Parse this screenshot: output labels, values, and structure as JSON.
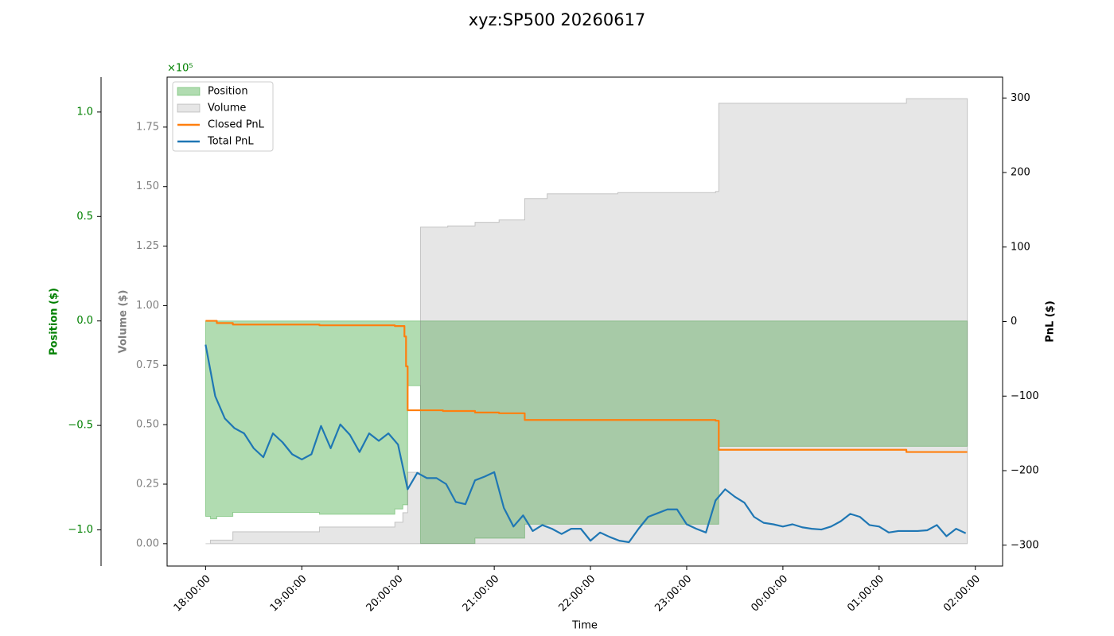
{
  "chart_data": {
    "type": "line",
    "title": "xyz:SP500 20260617",
    "xlabel": "Time",
    "xlim": [
      "17:36:00",
      "02:17:00"
    ],
    "xticks": [
      "18:00:00",
      "19:00:00",
      "20:00:00",
      "21:00:00",
      "22:00:00",
      "23:00:00",
      "00:00:00",
      "01:00:00",
      "02:00:00"
    ],
    "legend": "upper left",
    "axes": {
      "position": {
        "label": "Position ($)",
        "color": "green",
        "offset_label": "×10⁵",
        "lim": [
          -1.173,
          1.167
        ],
        "ticks": [
          {
            "value": -1,
            "label": "−1.0"
          },
          {
            "value": -0.5,
            "label": "−0.5"
          },
          {
            "value": 0,
            "label": "0.0"
          },
          0.5,
          {
            "value": 1,
            "label": "1.0"
          }
        ]
      },
      "volume": {
        "label": "Volume ($)",
        "color": "gray",
        "lim": [
          -0.094,
          1.96
        ],
        "ticks": [
          {
            "value": 0,
            "label": "0.00"
          },
          0.25,
          {
            "value": 0.5,
            "label": "0.50"
          },
          0.75,
          {
            "value": 1,
            "label": "1.00"
          },
          1.25,
          {
            "value": 1.5,
            "label": "1.50"
          },
          1.75
        ]
      },
      "pnl": {
        "label": "PnL ($)",
        "color": "#000000",
        "lim": [
          -328,
          328
        ],
        "ticks": [
          {
            "value": -300,
            "label": "−300"
          },
          {
            "value": -200,
            "label": "−200"
          },
          {
            "value": -100,
            "label": "−100"
          },
          0,
          100,
          200,
          300
        ]
      }
    },
    "series": [
      {
        "name": "Position",
        "kind": "area",
        "step": "post",
        "axis": "position",
        "color": "#2ca02c",
        "x": [
          "18:00:00",
          "18:03:00",
          "18:07:00",
          "18:17:00",
          "19:11:00",
          "19:58:00",
          "20:03:00",
          "20:06:00",
          "20:14:00",
          "20:48:00",
          "21:19:00",
          "23:20:00",
          "01:55:00"
        ],
        "values": [
          -0.935,
          -0.947,
          -0.935,
          -0.916,
          -0.925,
          -0.9,
          -0.88,
          -0.31,
          -1.065,
          -1.04,
          -0.973,
          -0.6,
          -0.6
        ]
      },
      {
        "name": "Volume",
        "kind": "area",
        "step": "post",
        "axis": "volume",
        "color": "#808080",
        "x": [
          "18:00:00",
          "18:03:00",
          "18:17:00",
          "19:11:00",
          "19:58:00",
          "20:03:00",
          "20:06:00",
          "20:14:00",
          "20:31:00",
          "20:48:00",
          "21:03:00",
          "21:19:00",
          "21:33:00",
          "22:17:00",
          "23:18:00",
          "23:20:00",
          "01:17:00",
          "01:55:00"
        ],
        "values": [
          0,
          0.015,
          0.05,
          0.07,
          0.09,
          0.13,
          0.3,
          1.33,
          1.335,
          1.35,
          1.36,
          1.45,
          1.47,
          1.475,
          1.48,
          1.85,
          1.87,
          1.87
        ]
      },
      {
        "name": "Closed PnL",
        "kind": "line",
        "step": "post",
        "axis": "pnl",
        "color": "#ff7f0e",
        "x": [
          "18:00:00",
          "18:07:00",
          "18:17:00",
          "19:11:00",
          "19:58:00",
          "20:04:00",
          "20:05:00",
          "20:06:00",
          "20:28:00",
          "20:48:00",
          "21:03:00",
          "21:19:00",
          "22:17:00",
          "23:18:00",
          "23:20:00",
          "01:17:00",
          "01:55:00"
        ],
        "values": [
          1,
          -2,
          -4,
          -5,
          -6,
          -20,
          -60,
          -119,
          -120,
          -122,
          -123,
          -132,
          -132,
          -133,
          -172,
          -175,
          -175
        ]
      },
      {
        "name": "Total PnL",
        "kind": "line",
        "axis": "pnl",
        "color": "#1f77b4",
        "x": [
          "18:00:00",
          "18:06:00",
          "18:12:00",
          "18:18:00",
          "18:24:00",
          "18:30:00",
          "18:36:00",
          "18:42:00",
          "18:48:00",
          "18:54:00",
          "19:00:00",
          "19:06:00",
          "19:12:00",
          "19:18:00",
          "19:24:00",
          "19:30:00",
          "19:36:00",
          "19:42:00",
          "19:48:00",
          "19:54:00",
          "20:00:00",
          "20:06:00",
          "20:12:00",
          "20:18:00",
          "20:24:00",
          "20:30:00",
          "20:36:00",
          "20:42:00",
          "20:48:00",
          "20:54:00",
          "21:00:00",
          "21:06:00",
          "21:12:00",
          "21:18:00",
          "21:24:00",
          "21:30:00",
          "21:36:00",
          "21:42:00",
          "21:48:00",
          "21:54:00",
          "22:00:00",
          "22:06:00",
          "22:12:00",
          "22:18:00",
          "22:24:00",
          "22:30:00",
          "22:36:00",
          "22:42:00",
          "22:48:00",
          "22:54:00",
          "23:00:00",
          "23:06:00",
          "23:12:00",
          "23:18:00",
          "23:24:00",
          "23:30:00",
          "23:36:00",
          "23:42:00",
          "23:48:00",
          "23:54:00",
          "00:00:00",
          "00:06:00",
          "00:12:00",
          "00:18:00",
          "00:24:00",
          "00:30:00",
          "00:36:00",
          "00:42:00",
          "00:48:00",
          "00:54:00",
          "01:00:00",
          "01:06:00",
          "01:12:00",
          "01:18:00",
          "01:24:00",
          "01:30:00",
          "01:36:00",
          "01:42:00",
          "01:48:00",
          "01:54:00"
        ],
        "values": [
          -31,
          -100,
          -130,
          -143,
          -150,
          -170,
          -182,
          -150,
          -162,
          -178,
          -185,
          -178,
          -140,
          -170,
          -138,
          -152,
          -175,
          -150,
          -160,
          -150,
          -165,
          -225,
          -203,
          -210,
          -210,
          -218,
          -242,
          -245,
          -213,
          -208,
          -202,
          -250,
          -275,
          -260,
          -281,
          -273,
          -278,
          -285,
          -278,
          -278,
          -294,
          -283,
          -289,
          -294,
          -296,
          -278,
          -262,
          -257,
          -252,
          -252,
          -272,
          -278,
          -283,
          -240,
          -225,
          -235,
          -243,
          -262,
          -270,
          -272,
          -275,
          -272,
          -276,
          -278,
          -279,
          -275,
          -268,
          -258,
          -262,
          -273,
          -275,
          -283,
          -281,
          -281,
          -281,
          -280,
          -273,
          -288,
          -278,
          -284
        ]
      }
    ]
  }
}
